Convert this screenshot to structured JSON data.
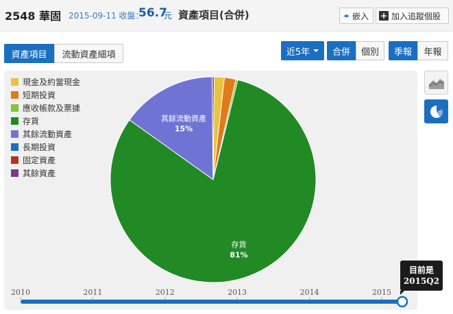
{
  "header": {
    "stock_title": "2548 華固",
    "date_info": "2015-09-11 收盤：",
    "price": "56.7",
    "price_unit": "元",
    "report_title": "資產項目(合併)",
    "embed_label": "嵌入",
    "follow_label": "加入追蹤個股"
  },
  "tabs": {
    "assets": "資產項目",
    "current_assets": "流動資產細項"
  },
  "controls": {
    "period": "近5年",
    "consolidated": "合併",
    "individual": "個別",
    "quarterly": "季報",
    "annual": "年報"
  },
  "colors": {
    "accent": "#1a6fc1"
  },
  "icons": {
    "line_view": "line-chart-icon",
    "pie_view": "pie-chart-icon",
    "embed": "embed-icon",
    "follow": "plus-icon"
  },
  "chart_data": {
    "type": "pie",
    "legend_position": "top-left",
    "series": [
      {
        "name": "現金及約當現金",
        "value": 1.6,
        "color": "#e9c441"
      },
      {
        "name": "短期投資",
        "value": 1.8,
        "color": "#e07b1c"
      },
      {
        "name": "應收帳款及票據",
        "value": 0.3,
        "color": "#86c23a"
      },
      {
        "name": "存貨",
        "value": 81,
        "color": "#228a24",
        "label": "存貨",
        "pct": "81%"
      },
      {
        "name": "其餘流動資產",
        "value": 15,
        "color": "#6f74d4",
        "label": "其餘流動資產",
        "pct": "15%"
      },
      {
        "name": "長期投資",
        "value": 0,
        "color": "#1a6fc1"
      },
      {
        "name": "固定資產",
        "value": 0,
        "color": "#b5322a"
      },
      {
        "name": "其餘資產",
        "value": 0.3,
        "color": "#7d3a88"
      }
    ]
  },
  "timeline": {
    "years": [
      "2010",
      "2011",
      "2012",
      "2013",
      "2014",
      "2015"
    ],
    "position": 1.0,
    "tooltip_line1": "目前是",
    "tooltip_line2": "2015Q2"
  }
}
